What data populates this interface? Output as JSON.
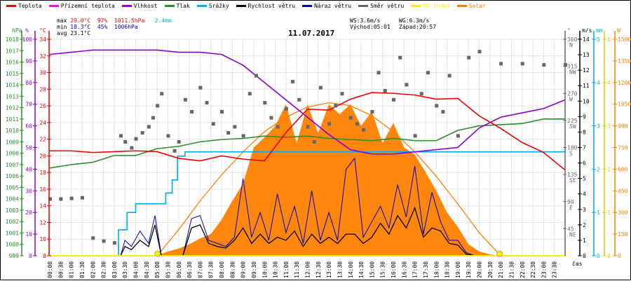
{
  "legend": [
    {
      "label": "Teplota",
      "color": "#ee0000"
    },
    {
      "label": "Přízemní teplota",
      "color": "#ff00ff"
    },
    {
      "label": "Vlhkost",
      "color": "#8e00cc"
    },
    {
      "label": "Tlak",
      "color": "#2e8b2e"
    },
    {
      "label": "Srážky",
      "color": "#00aaee"
    },
    {
      "label": "Rychlost větru",
      "color": "#000000"
    },
    {
      "label": "Náraz větru",
      "color": "#0000bb"
    },
    {
      "label": "Směr větru",
      "color": "#666666"
    },
    {
      "label": "UV index",
      "color": "#ffee00"
    },
    {
      "label": "Solar",
      "color": "#ff8000"
    }
  ],
  "stats": {
    "max_label": "max",
    "max_temp": "29.0°C",
    "max_hum": "97%",
    "max_press": "1011.5hPa",
    "max_rain": "2.4mm",
    "min_label": "min",
    "min_temp": "18.3°C",
    "min_hum": "45%",
    "min_press": "1006hPa",
    "avg_label": "avg",
    "avg_temp": "23.1°C",
    "ws": "WS:3.6m/s",
    "wg": "WG:6.3m/s",
    "sunrise": "Východ:05:01",
    "sunset": "Západ:20:57"
  },
  "chart_data": {
    "type": "line",
    "title": "11.07.2017",
    "xlabel": "čas",
    "x_ticks": [
      "00:00",
      "00:30",
      "01:00",
      "01:30",
      "02:00",
      "02:30",
      "03:00",
      "03:30",
      "04:00",
      "04:30",
      "05:00",
      "05:30",
      "06:00",
      "06:30",
      "07:00",
      "07:30",
      "08:00",
      "08:30",
      "09:00",
      "09:30",
      "10:00",
      "10:30",
      "11:00",
      "11:30",
      "12:00",
      "12:30",
      "13:00",
      "13:30",
      "14:00",
      "14:30",
      "15:00",
      "15:30",
      "16:00",
      "16:30",
      "17:00",
      "17:30",
      "18:00",
      "18:30",
      "19:00",
      "19:30",
      "20:00",
      "20:30",
      "21:00",
      "21:30",
      "22:00",
      "22:30",
      "23:00",
      "23:30"
    ],
    "axes": {
      "pressure": {
        "unit": "hPa",
        "range": [
          999,
          1018
        ],
        "ticks": [
          999,
          1000,
          1001,
          1002,
          1003,
          1004,
          1005,
          1006,
          1007,
          1008,
          1009,
          1010,
          1011,
          1012,
          1013,
          1014,
          1015,
          1016,
          1017,
          1018
        ]
      },
      "humidity": {
        "unit": "%",
        "range": [
          0,
          100
        ],
        "ticks": [
          0,
          10,
          20,
          30,
          40,
          50,
          60,
          70,
          80,
          90,
          100
        ]
      },
      "temperature": {
        "unit": "°C",
        "range": [
          8,
          34
        ],
        "ticks": [
          8,
          10,
          12,
          14,
          16,
          18,
          20,
          22,
          24,
          26,
          28,
          30,
          32,
          34
        ]
      },
      "direction": {
        "unit": "°",
        "range": [
          0,
          360
        ],
        "ticks": [
          {
            "v": 45,
            "d": "NE"
          },
          {
            "v": 90,
            "d": "E"
          },
          {
            "v": 135,
            "d": "SE"
          },
          {
            "v": 180,
            "d": "S"
          },
          {
            "v": 225,
            "d": "SW"
          },
          {
            "v": 270,
            "d": "W"
          },
          {
            "v": 315,
            "d": "NW"
          },
          {
            "v": 360,
            "d": "N"
          }
        ]
      },
      "wind": {
        "unit": "m/s",
        "range": [
          0,
          14
        ],
        "ticks": [
          0,
          1,
          2,
          3,
          4,
          5,
          6,
          7,
          8,
          9,
          10,
          11,
          12,
          13,
          14
        ]
      },
      "rain": {
        "unit": "mm",
        "range": [
          0,
          5
        ],
        "ticks": [
          0,
          1,
          2,
          3,
          4,
          5
        ]
      },
      "uv": {
        "unit": "",
        "range": [
          0,
          5
        ],
        "ticks": [
          0,
          1,
          2,
          3,
          4,
          5
        ]
      },
      "solar": {
        "unit": "W",
        "range": [
          0,
          1500
        ],
        "ticks": [
          0,
          150,
          300,
          450,
          600,
          750,
          900,
          1050,
          1200,
          1350,
          1500
        ]
      }
    },
    "series": [
      {
        "name": "Teplota",
        "axis": "temperature",
        "x": [
          0,
          1,
          2,
          3,
          4,
          5,
          6,
          7,
          8,
          9,
          10,
          11,
          12,
          13,
          14,
          15,
          16,
          17,
          18,
          19,
          20,
          21,
          22,
          23,
          24
        ],
        "y": [
          20.6,
          20.6,
          20.4,
          20.5,
          20.6,
          20.5,
          19.7,
          19.4,
          20.0,
          19.6,
          19.4,
          22.8,
          25.6,
          25.5,
          26.8,
          27.6,
          27.5,
          27.3,
          26.8,
          26.9,
          24.8,
          23.3,
          21.6,
          20.4,
          18.3
        ]
      },
      {
        "name": "Vlhkost",
        "axis": "humidity",
        "x": [
          0,
          1,
          2,
          3,
          4,
          5,
          6,
          7,
          8,
          9,
          10,
          11,
          12,
          13,
          14,
          15,
          16,
          17,
          18,
          19,
          20,
          21,
          22,
          23,
          24
        ],
        "y": [
          93,
          94,
          95,
          95,
          95,
          95,
          94,
          94,
          93,
          88,
          80,
          72,
          64,
          56,
          49,
          47,
          47,
          48,
          49,
          50,
          59,
          64,
          66,
          68,
          72
        ]
      },
      {
        "name": "Tlak",
        "axis": "pressure",
        "x": [
          0,
          1,
          2,
          3,
          4,
          5,
          6,
          7,
          8,
          9,
          10,
          11,
          12,
          13,
          14,
          15,
          16,
          17,
          18,
          19,
          20,
          21,
          22,
          23,
          24
        ],
        "y": [
          1006.7,
          1007.0,
          1007.2,
          1007.8,
          1007.8,
          1008.4,
          1008.6,
          1009.0,
          1009.2,
          1009.3,
          1009.5,
          1009.4,
          1009.5,
          1009.3,
          1009.2,
          1009.1,
          1009.3,
          1009.1,
          1009.1,
          1010.0,
          1010.4,
          1010.5,
          1010.6,
          1011.0,
          1011.0
        ]
      },
      {
        "name": "Srážky",
        "axis": "rain",
        "x": [
          0,
          2.7,
          3.2,
          3.6,
          4.0,
          4.8,
          5.4,
          5.7,
          5.95,
          6.3,
          6.4,
          7,
          24
        ],
        "y": [
          0,
          0,
          0.6,
          1.0,
          1.2,
          1.2,
          1.45,
          1.75,
          2.3,
          2.4,
          2.4,
          2.4,
          2.4
        ]
      },
      {
        "name": "Rychlost větru",
        "axis": "wind",
        "x": [
          0,
          3.3,
          3.5,
          3.8,
          4.2,
          4.6,
          4.9,
          5.2,
          5.4,
          6.2,
          6.6,
          7.0,
          7.4,
          7.8,
          8.2,
          8.6,
          9.0,
          9.4,
          9.8,
          10.2,
          10.6,
          11.0,
          11.4,
          11.8,
          12.2,
          12.6,
          13.0,
          13.4,
          13.8,
          14.2,
          14.6,
          15.0,
          15.4,
          15.8,
          16.2,
          16.6,
          17.0,
          17.4,
          17.8,
          18.2,
          18.6,
          19.0,
          19.4,
          19.8,
          24
        ],
        "y": [
          0,
          0,
          0.6,
          0.4,
          1.0,
          0.6,
          2.0,
          0,
          0,
          0,
          1.8,
          2.0,
          0.8,
          0.6,
          0.5,
          1.0,
          1.8,
          0.8,
          1.4,
          0.8,
          1.2,
          1.0,
          1.6,
          0.6,
          1.4,
          0.8,
          1.2,
          0.8,
          1.4,
          1.4,
          0.8,
          1.2,
          2.1,
          1.4,
          2.6,
          1.8,
          3.1,
          1.2,
          1.8,
          1.6,
          0.8,
          0.7,
          0.1,
          0,
          0
        ]
      },
      {
        "name": "Náraz větru",
        "axis": "wind",
        "x": [
          0,
          3.3,
          3.5,
          3.8,
          4.2,
          4.6,
          4.9,
          5.2,
          5.4,
          6.2,
          6.6,
          7.0,
          7.4,
          7.8,
          8.2,
          8.6,
          9.0,
          9.4,
          9.8,
          10.2,
          10.6,
          11.0,
          11.4,
          11.8,
          12.2,
          12.6,
          13.0,
          13.4,
          13.8,
          14.2,
          14.6,
          15.0,
          15.4,
          15.8,
          16.2,
          16.6,
          17.0,
          17.4,
          17.8,
          18.2,
          18.6,
          19.0,
          19.4,
          19.8,
          24
        ],
        "y": [
          0,
          0,
          1.0,
          0.6,
          1.6,
          0.8,
          2.6,
          0,
          0,
          0,
          2.4,
          2.6,
          1.0,
          0.8,
          0.6,
          1.2,
          5.0,
          1.2,
          2.8,
          1.0,
          4.0,
          1.5,
          3.2,
          0.8,
          4.2,
          1.0,
          2.8,
          1.0,
          5.6,
          6.3,
          1.2,
          2.2,
          3.2,
          1.8,
          4.6,
          2.5,
          5.8,
          1.4,
          4.1,
          2.2,
          1.0,
          1.0,
          0.2,
          0,
          0
        ]
      },
      {
        "name": "Solar",
        "axis": "solar",
        "x": [
          0,
          5.0,
          5.5,
          6.0,
          6.5,
          7.0,
          7.5,
          8.0,
          8.5,
          9.0,
          9.5,
          10.0,
          10.5,
          11.0,
          11.5,
          12.0,
          12.5,
          13.0,
          13.5,
          14.0,
          14.5,
          15.0,
          15.5,
          16.0,
          16.5,
          17.0,
          17.5,
          18.0,
          18.5,
          19.0,
          19.5,
          20.0,
          20.5,
          21.0,
          24
        ],
        "y": [
          0,
          0,
          30,
          50,
          80,
          120,
          150,
          250,
          380,
          500,
          750,
          820,
          900,
          1050,
          780,
          1050,
          850,
          1050,
          980,
          1050,
          900,
          1000,
          780,
          920,
          750,
          700,
          580,
          450,
          300,
          200,
          80,
          30,
          10,
          0,
          0
        ]
      },
      {
        "name": "Solar (theoretical)",
        "axis": "solar",
        "x": [
          5.0,
          6,
          7,
          8,
          9,
          10,
          11,
          12,
          13,
          14,
          15,
          16,
          17,
          18,
          19,
          20,
          21.0
        ],
        "y": [
          0,
          180,
          380,
          560,
          720,
          860,
          960,
          1030,
          1060,
          1040,
          970,
          860,
          720,
          550,
          360,
          160,
          0
        ]
      },
      {
        "name": "Směr větru",
        "axis": "direction",
        "x": [
          0,
          0.5,
          1,
          1.5,
          2,
          2.5,
          3,
          3.3,
          3.5,
          3.8,
          4.0,
          4.3,
          4.6,
          4.8,
          5.0,
          5.2,
          5.5,
          5.8,
          6.0,
          6.3,
          6.6,
          7.0,
          7.3,
          7.6,
          8.0,
          8.3,
          8.6,
          9.0,
          9.3,
          9.6,
          10.0,
          10.3,
          10.6,
          11.0,
          11.3,
          11.6,
          12.0,
          12.3,
          12.6,
          13.0,
          13.3,
          13.6,
          14.0,
          14.3,
          14.6,
          15.0,
          15.3,
          15.6,
          16.0,
          16.3,
          16.6,
          17.0,
          17.3,
          17.6,
          18.0,
          18.3,
          18.6,
          19.0,
          19.5,
          20,
          21,
          22,
          23,
          24
        ],
        "y": [
          95,
          95,
          96,
          97,
          30,
          25,
          22,
          200,
          190,
          180,
          195,
          205,
          215,
          230,
          250,
          270,
          200,
          175,
          190,
          260,
          240,
          280,
          255,
          220,
          240,
          205,
          215,
          200,
          270,
          300,
          255,
          230,
          215,
          245,
          290,
          260,
          215,
          190,
          280,
          220,
          250,
          270,
          230,
          220,
          210,
          240,
          305,
          275,
          260,
          330,
          285,
          200,
          270,
          305,
          250,
          240,
          300,
          200,
          330,
          340,
          320,
          320,
          318,
          318
        ]
      }
    ],
    "markers": [
      {
        "name": "Východ",
        "x": 5.02
      },
      {
        "name": "Západ",
        "x": 20.95
      }
    ]
  }
}
